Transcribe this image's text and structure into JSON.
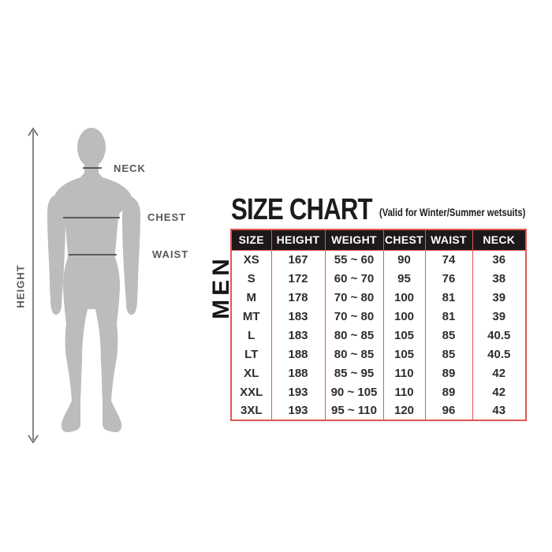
{
  "figure": {
    "height_label": "HEIGHT",
    "neck_label": "NECK",
    "chest_label": "CHEST",
    "waist_label": "WAIST"
  },
  "chart": {
    "title": "SIZE CHART",
    "subtitle": "(Valid for Winter/Summer wetsuits)",
    "group_label": "MEN"
  },
  "chart_data": {
    "type": "table",
    "title": "SIZE CHART (Valid for Winter/Summer wetsuits) - MEN",
    "columns": [
      "SIZE",
      "HEIGHT",
      "WEIGHT",
      "CHEST",
      "WAIST",
      "NECK"
    ],
    "rows": [
      [
        "XS",
        "167",
        "55 ~ 60",
        "90",
        "74",
        "36"
      ],
      [
        "S",
        "172",
        "60 ~ 70",
        "95",
        "76",
        "38"
      ],
      [
        "M",
        "178",
        "70 ~ 80",
        "100",
        "81",
        "39"
      ],
      [
        "MT",
        "183",
        "70 ~ 80",
        "100",
        "81",
        "39"
      ],
      [
        "L",
        "183",
        "80 ~ 85",
        "105",
        "85",
        "40.5"
      ],
      [
        "LT",
        "188",
        "80 ~ 85",
        "105",
        "85",
        "40.5"
      ],
      [
        "XL",
        "188",
        "85 ~ 95",
        "110",
        "89",
        "42"
      ],
      [
        "XXL",
        "193",
        "90 ~ 105",
        "110",
        "89",
        "42"
      ],
      [
        "3XL",
        "193",
        "95 ~ 110",
        "120",
        "96",
        "43"
      ]
    ]
  },
  "colors": {
    "table_border": "#e0584f",
    "header_bg": "#1d191b",
    "header_text": "#ffffff",
    "silhouette": "#bcbcbc",
    "measure_line": "#4d4d4d",
    "label_text": "#58585a",
    "arrow": "#666666",
    "title_text": "#1c1c1a"
  }
}
